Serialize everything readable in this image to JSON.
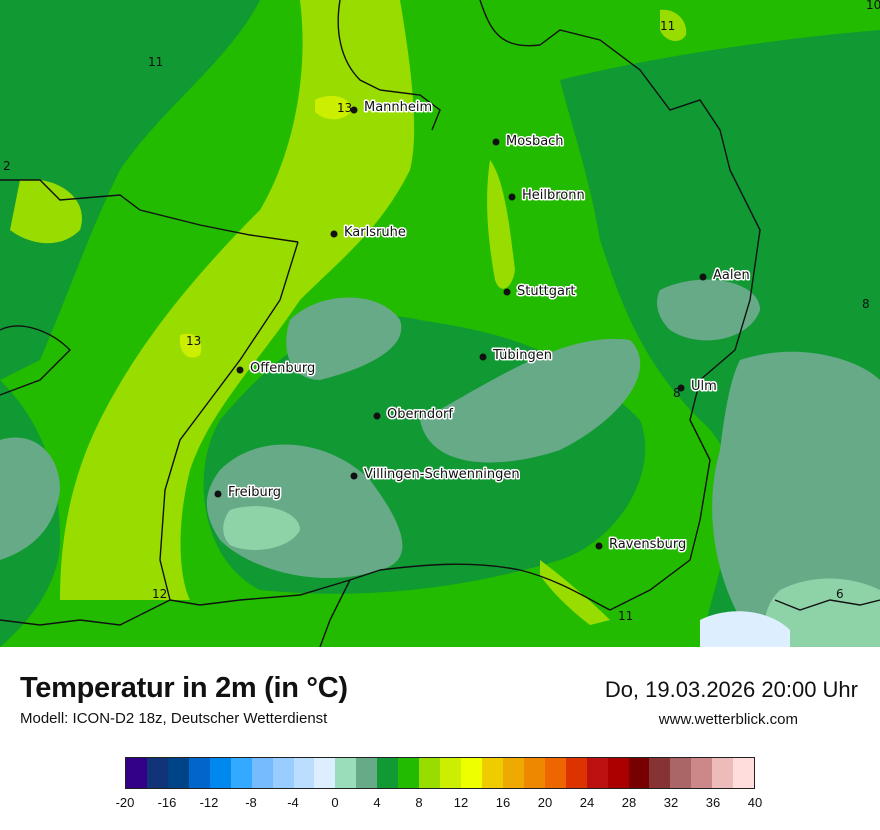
{
  "map": {
    "cities": [
      {
        "name": "Mannheim"
      },
      {
        "name": "Mosbach"
      },
      {
        "name": "Heilbronn"
      },
      {
        "name": "Karlsruhe"
      },
      {
        "name": "Aalen"
      },
      {
        "name": "Stuttgart"
      },
      {
        "name": "Offenburg"
      },
      {
        "name": "Tübingen"
      },
      {
        "name": "Ulm"
      },
      {
        "name": "Oberndorf"
      },
      {
        "name": "Villingen-Schwenningen"
      },
      {
        "name": "Freiburg"
      },
      {
        "name": "Ravensburg"
      }
    ],
    "isolines": [
      "11",
      "10",
      "13",
      "2",
      "11",
      "13",
      "8",
      "8",
      "12",
      "11",
      "6"
    ],
    "colors": {
      "temp_6_8": "#66bb88",
      "temp_4_6": "#8ed3a8",
      "temp_8_10": "#119933",
      "temp_10_12": "#22bb00",
      "temp_12_14": "#99dd00",
      "temp_14_16": "#ccee00",
      "border": "#111111"
    }
  },
  "header": {
    "title": "Temperatur in 2m (in °C)",
    "model": "Modell: ICON-D2 18z, Deutscher Wetterdienst",
    "datetime": "Do, 19.03.2026 20:00 Uhr",
    "website": "www.wetterblick.com"
  },
  "legend": {
    "colors": [
      "#330088",
      "#113377",
      "#004488",
      "#0066cc",
      "#0088ee",
      "#33aaff",
      "#77bbff",
      "#99ccff",
      "#bbddff",
      "#ddeeff",
      "#99ddbb",
      "#66aa88",
      "#119933",
      "#22bb00",
      "#99dd00",
      "#ccee00",
      "#eeff00",
      "#eecc00",
      "#eeaa00",
      "#ee8800",
      "#ee6600",
      "#dd3300",
      "#bb1111",
      "#aa0000",
      "#770000",
      "#883333",
      "#aa6666",
      "#cc8888",
      "#eebbbb",
      "#ffdddd"
    ],
    "ticks": [
      "-20",
      "-16",
      "-12",
      "-8",
      "-4",
      "0",
      "4",
      "8",
      "12",
      "16",
      "20",
      "24",
      "28",
      "32",
      "36",
      "40"
    ]
  }
}
